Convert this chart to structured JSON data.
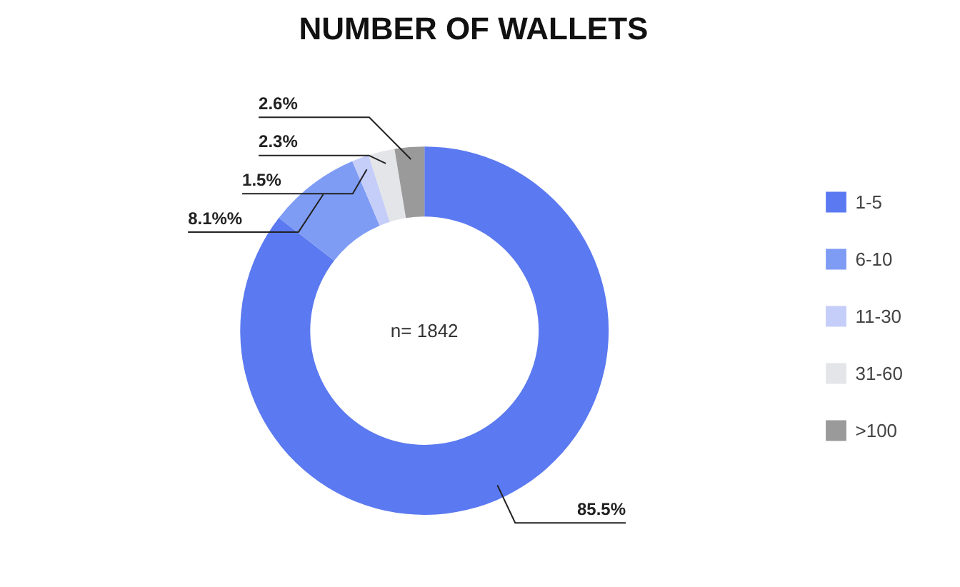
{
  "chart_data": {
    "type": "donut",
    "title": "NUMBER OF WALLETS",
    "categories": [
      "1-5",
      "6-10",
      "11-30",
      "31-60",
      ">100"
    ],
    "values": [
      85.5,
      8.1,
      1.5,
      2.3,
      2.6
    ],
    "colors": [
      "#5b79f0",
      "#7f9cf5",
      "#c5cdf9",
      "#e3e5e8",
      "#9a9a9a"
    ],
    "value_labels": [
      "85.5%",
      "8.1%%",
      "1.5%",
      "2.3%",
      "2.6%"
    ],
    "annotations": [
      "n= 1842"
    ],
    "legend": "right"
  }
}
